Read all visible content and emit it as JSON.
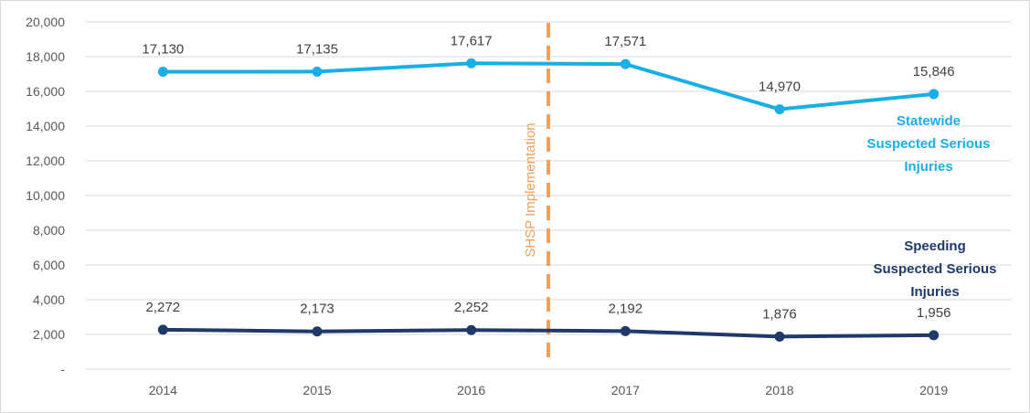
{
  "chart_data": {
    "type": "line",
    "categories": [
      "2014",
      "2015",
      "2016",
      "2017",
      "2018",
      "2019"
    ],
    "ylim": [
      0,
      20000
    ],
    "y_ticks": [
      0,
      2000,
      4000,
      6000,
      8000,
      10000,
      12000,
      14000,
      16000,
      18000,
      20000
    ],
    "y_tick_labels": [
      "-",
      "2,000",
      "4,000",
      "6,000",
      "8,000",
      "10,000",
      "12,000",
      "14,000",
      "16,000",
      "18,000",
      "20,000"
    ],
    "grid": true,
    "series": [
      {
        "name_lines": [
          "Statewide",
          "Suspected Serious",
          "Injuries"
        ],
        "values": [
          17130,
          17135,
          17617,
          17571,
          14970,
          15846
        ],
        "labels": [
          "17,130",
          "17,135",
          "17,617",
          "17,571",
          "14,970",
          "15,846"
        ],
        "color": "#1aaee6"
      },
      {
        "name_lines": [
          "Speeding",
          "Suspected Serious",
          "Injuries"
        ],
        "values": [
          2272,
          2173,
          2252,
          2192,
          1876,
          1956
        ],
        "labels": [
          "2,272",
          "2,173",
          "2,252",
          "2,192",
          "1,876",
          "1,956"
        ],
        "color": "#1f3a68"
      }
    ],
    "annotation": {
      "text": "SHSP Implementation",
      "position_between": [
        "2016",
        "2017"
      ],
      "color": "#f0a05a"
    }
  }
}
